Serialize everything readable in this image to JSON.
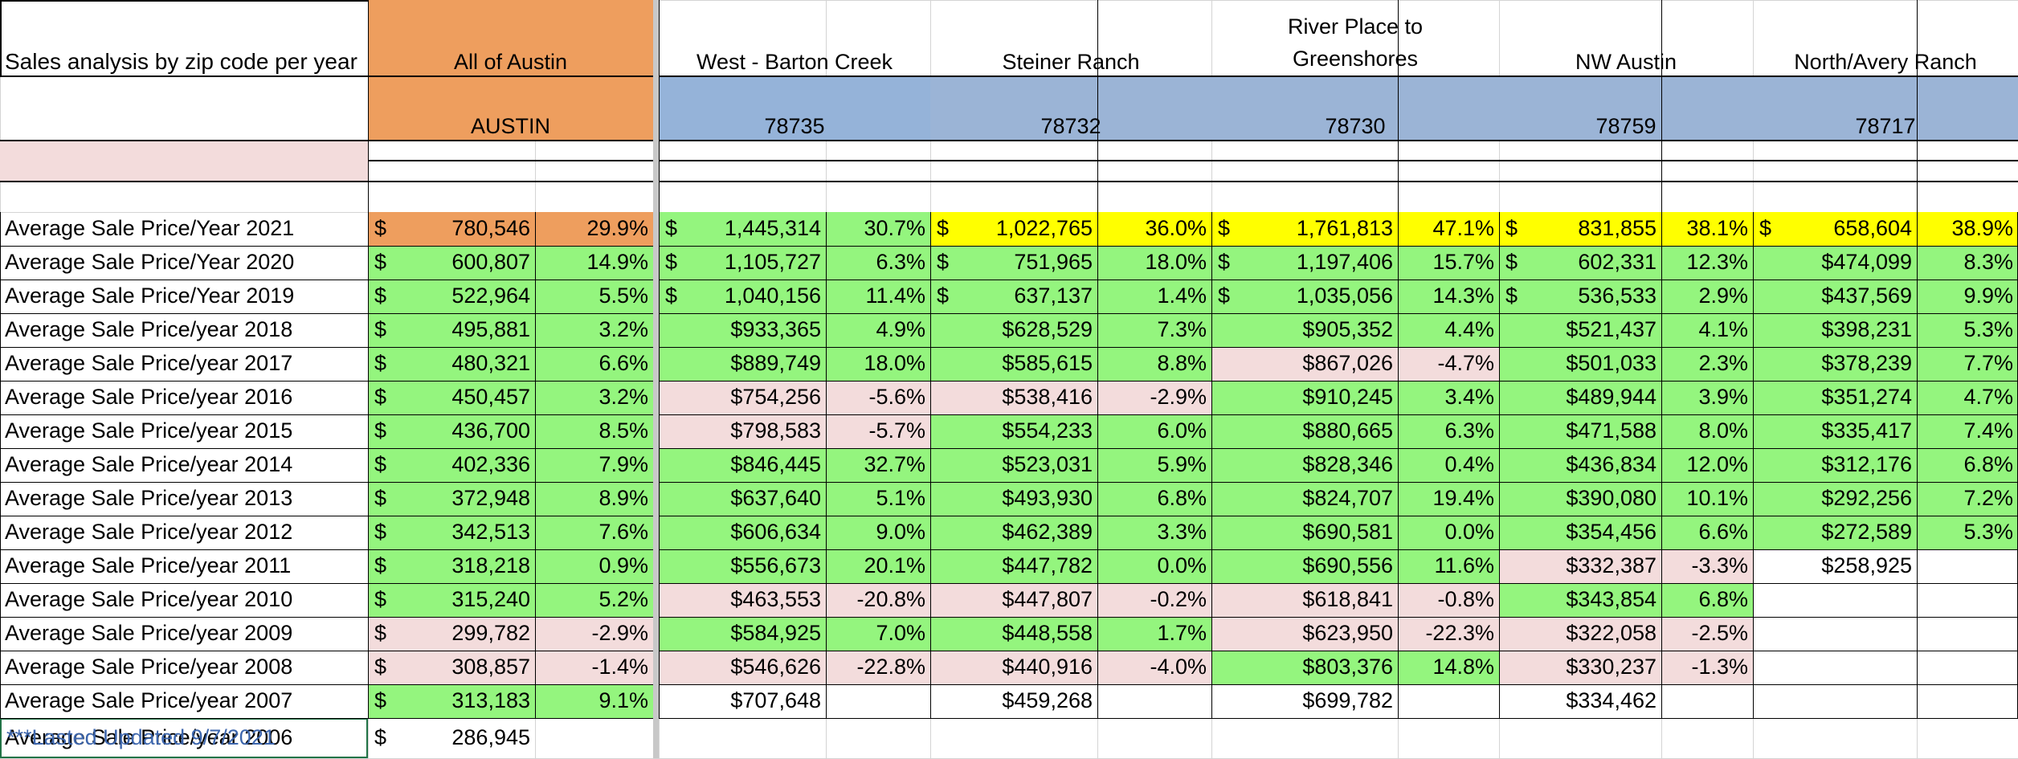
{
  "title": "Sales analysis by zip code per year",
  "footer": "***Lasted Updated 9/7/2021",
  "colors": {
    "orange": "#ee9e5e",
    "blue_light": "#95b3d9",
    "blue": "#9bb4d6",
    "yellow": "#ffff00",
    "green": "#94f57e",
    "pink": "#f3dcdc",
    "footer_text": "#3d66ad"
  },
  "areas": [
    {
      "name": "All of Austin",
      "zip": "AUSTIN"
    },
    {
      "name": "West - Barton Creek",
      "zip": "78735"
    },
    {
      "name": "Steiner Ranch",
      "zip": "78732"
    },
    {
      "name": "River Place to Greenshores",
      "name_lines": [
        "River Place to",
        "Greenshores"
      ],
      "zip": "78730"
    },
    {
      "name": "NW Austin",
      "zip": "78759"
    },
    {
      "name": "North/Avery Ranch",
      "zip": "78717"
    }
  ],
  "rows": [
    {
      "label": "Average Sale Price/Year 2021",
      "cells": [
        {
          "dollar": "$",
          "price": "780,546",
          "pct": "29.9%",
          "color": "orange"
        },
        {
          "dollar": "$",
          "price": "1,445,314",
          "pct": "30.7%",
          "color": "green"
        },
        {
          "dollar": "$",
          "price": "1,022,765",
          "pct": "36.0%",
          "color": "yellow"
        },
        {
          "dollar": "$",
          "price": "1,761,813",
          "pct": "47.1%",
          "color": "yellow"
        },
        {
          "dollar": "$",
          "price": "831,855",
          "pct": "38.1%",
          "color": "yellow"
        },
        {
          "dollar": "$",
          "price": "658,604",
          "pct": "38.9%",
          "color": "yellow"
        }
      ]
    },
    {
      "label": "Average Sale Price/Year 2020",
      "cells": [
        {
          "dollar": "$",
          "price": "600,807",
          "pct": "14.9%",
          "color": "green"
        },
        {
          "dollar": "$",
          "price": "1,105,727",
          "pct": "6.3%",
          "color": "green"
        },
        {
          "dollar": "$",
          "price": "751,965",
          "pct": "18.0%",
          "color": "green"
        },
        {
          "dollar": "$",
          "price": "1,197,406",
          "pct": "15.7%",
          "color": "green"
        },
        {
          "dollar": "$",
          "price": "602,331",
          "pct": "12.3%",
          "color": "green"
        },
        {
          "price": "$474,099",
          "pct": "8.3%",
          "color": "green"
        }
      ]
    },
    {
      "label": "Average Sale Price/Year 2019",
      "cells": [
        {
          "dollar": "$",
          "price": "522,964",
          "pct": "5.5%",
          "color": "green"
        },
        {
          "dollar": "$",
          "price": "1,040,156",
          "pct": "11.4%",
          "color": "green"
        },
        {
          "dollar": "$",
          "price": "637,137",
          "pct": "1.4%",
          "color": "green"
        },
        {
          "dollar": "$",
          "price": "1,035,056",
          "pct": "14.3%",
          "color": "green"
        },
        {
          "dollar": "$",
          "price": "536,533",
          "pct": "2.9%",
          "color": "green"
        },
        {
          "price": "$437,569",
          "pct": "9.9%",
          "color": "green"
        }
      ]
    },
    {
      "label": "Average Sale Price/year 2018",
      "cells": [
        {
          "dollar": "$",
          "price": "495,881",
          "pct": "3.2%",
          "color": "green"
        },
        {
          "price": "$933,365",
          "pct": "4.9%",
          "color": "green"
        },
        {
          "price": "$628,529",
          "pct": "7.3%",
          "color": "green"
        },
        {
          "price": "$905,352",
          "pct": "4.4%",
          "color": "green"
        },
        {
          "price": "$521,437",
          "pct": "4.1%",
          "color": "green"
        },
        {
          "price": "$398,231",
          "pct": "5.3%",
          "color": "green"
        }
      ]
    },
    {
      "label": "Average Sale Price/year 2017",
      "cells": [
        {
          "dollar": "$",
          "price": "480,321",
          "pct": "6.6%",
          "color": "green"
        },
        {
          "price": "$889,749",
          "pct": "18.0%",
          "color": "green"
        },
        {
          "price": "$585,615",
          "pct": "8.8%",
          "color": "green"
        },
        {
          "price": "$867,026",
          "pct": "-4.7%",
          "color": "pink"
        },
        {
          "price": "$501,033",
          "pct": "2.3%",
          "color": "green"
        },
        {
          "price": "$378,239",
          "pct": "7.7%",
          "color": "green"
        }
      ]
    },
    {
      "label": "Average Sale Price/year 2016",
      "cells": [
        {
          "dollar": "$",
          "price": "450,457",
          "pct": "3.2%",
          "color": "green"
        },
        {
          "price": "$754,256",
          "pct": "-5.6%",
          "color": "pink"
        },
        {
          "price": "$538,416",
          "pct": "-2.9%",
          "color": "pink"
        },
        {
          "price": "$910,245",
          "pct": "3.4%",
          "color": "green"
        },
        {
          "price": "$489,944",
          "pct": "3.9%",
          "color": "green"
        },
        {
          "price": "$351,274",
          "pct": "4.7%",
          "color": "green"
        }
      ]
    },
    {
      "label": "Average Sale Price/year 2015",
      "cells": [
        {
          "dollar": "$",
          "price": "436,700",
          "pct": "8.5%",
          "color": "green"
        },
        {
          "price": "$798,583",
          "pct": "-5.7%",
          "color": "pink"
        },
        {
          "price": "$554,233",
          "pct": "6.0%",
          "color": "green"
        },
        {
          "price": "$880,665",
          "pct": "6.3%",
          "color": "green"
        },
        {
          "price": "$471,588",
          "pct": "8.0%",
          "color": "green"
        },
        {
          "price": "$335,417",
          "pct": "7.4%",
          "color": "green"
        }
      ]
    },
    {
      "label": "Average Sale Price/year 2014",
      "cells": [
        {
          "dollar": "$",
          "price": "402,336",
          "pct": "7.9%",
          "color": "green"
        },
        {
          "price": "$846,445",
          "pct": "32.7%",
          "color": "green"
        },
        {
          "price": "$523,031",
          "pct": "5.9%",
          "color": "green"
        },
        {
          "price": "$828,346",
          "pct": "0.4%",
          "color": "green"
        },
        {
          "price": "$436,834",
          "pct": "12.0%",
          "color": "green"
        },
        {
          "price": "$312,176",
          "pct": "6.8%",
          "color": "green"
        }
      ]
    },
    {
      "label": "Average Sale Price/year 2013",
      "cells": [
        {
          "dollar": "$",
          "price": "372,948",
          "pct": "8.9%",
          "color": "green"
        },
        {
          "price": "$637,640",
          "pct": "5.1%",
          "color": "green"
        },
        {
          "price": "$493,930",
          "pct": "6.8%",
          "color": "green"
        },
        {
          "price": "$824,707",
          "pct": "19.4%",
          "color": "green"
        },
        {
          "price": "$390,080",
          "pct": "10.1%",
          "color": "green"
        },
        {
          "price": "$292,256",
          "pct": "7.2%",
          "color": "green"
        }
      ]
    },
    {
      "label": "Average Sale Price/year 2012",
      "cells": [
        {
          "dollar": "$",
          "price": "342,513",
          "pct": "7.6%",
          "color": "green"
        },
        {
          "price": "$606,634",
          "pct": "9.0%",
          "color": "green"
        },
        {
          "price": "$462,389",
          "pct": "3.3%",
          "color": "green"
        },
        {
          "price": "$690,581",
          "pct": "0.0%",
          "color": "green"
        },
        {
          "price": "$354,456",
          "pct": "6.6%",
          "color": "green"
        },
        {
          "price": "$272,589",
          "pct": "5.3%",
          "color": "green"
        }
      ]
    },
    {
      "label": "Average Sale Price/year 2011",
      "cells": [
        {
          "dollar": "$",
          "price": "318,218",
          "pct": "0.9%",
          "color": "green"
        },
        {
          "price": "$556,673",
          "pct": "20.1%",
          "color": "green"
        },
        {
          "price": "$447,782",
          "pct": "0.0%",
          "color": "green"
        },
        {
          "price": "$690,556",
          "pct": "11.6%",
          "color": "green"
        },
        {
          "price": "$332,387",
          "pct": "-3.3%",
          "color": "pink"
        },
        {
          "price": "$258,925",
          "pct": ""
        }
      ]
    },
    {
      "label": "Average Sale Price/year 2010",
      "cells": [
        {
          "dollar": "$",
          "price": "315,240",
          "pct": "5.2%",
          "color": "green"
        },
        {
          "price": "$463,553",
          "pct": "-20.8%",
          "color": "pink"
        },
        {
          "price": "$447,807",
          "pct": "-0.2%",
          "color": "pink"
        },
        {
          "price": "$618,841",
          "pct": "-0.8%",
          "color": "pink"
        },
        {
          "price": "$343,854",
          "pct": "6.8%",
          "color": "green"
        },
        {
          "price": "",
          "pct": ""
        }
      ]
    },
    {
      "label": "Average Sale Price/year 2009",
      "cells": [
        {
          "dollar": "$",
          "price": "299,782",
          "pct": "-2.9%",
          "color": "pink"
        },
        {
          "price": "$584,925",
          "pct": "7.0%",
          "color": "green"
        },
        {
          "price": "$448,558",
          "pct": "1.7%",
          "color": "green"
        },
        {
          "price": "$623,950",
          "pct": "-22.3%",
          "color": "pink"
        },
        {
          "price": "$322,058",
          "pct": "-2.5%",
          "color": "pink"
        },
        {
          "price": "",
          "pct": ""
        }
      ]
    },
    {
      "label": "Average Sale Price/year 2008",
      "cells": [
        {
          "dollar": "$",
          "price": "308,857",
          "pct": "-1.4%",
          "color": "pink"
        },
        {
          "price": "$546,626",
          "pct": "-22.8%",
          "color": "pink"
        },
        {
          "price": "$440,916",
          "pct": "-4.0%",
          "color": "pink"
        },
        {
          "price": "$803,376",
          "pct": "14.8%",
          "color": "green"
        },
        {
          "price": "$330,237",
          "pct": "-1.3%",
          "color": "pink"
        },
        {
          "price": "",
          "pct": ""
        }
      ]
    },
    {
      "label": "Average Sale Price/year 2007",
      "cells": [
        {
          "dollar": "$",
          "price": "313,183",
          "pct": "9.1%",
          "color": "green"
        },
        {
          "price": "$707,648",
          "pct": ""
        },
        {
          "price": "$459,268",
          "pct": ""
        },
        {
          "price": "$699,782",
          "pct": ""
        },
        {
          "price": "$334,462",
          "pct": ""
        },
        {
          "price": "",
          "pct": ""
        }
      ]
    },
    {
      "label": "Average Sale Price/year 2006",
      "cells": [
        {
          "dollar": "$",
          "price": "286,945",
          "pct": ""
        },
        {
          "price": "",
          "pct": ""
        },
        {
          "price": "",
          "pct": ""
        },
        {
          "price": "",
          "pct": ""
        },
        {
          "price": "",
          "pct": ""
        },
        {
          "price": "",
          "pct": ""
        }
      ]
    }
  ]
}
